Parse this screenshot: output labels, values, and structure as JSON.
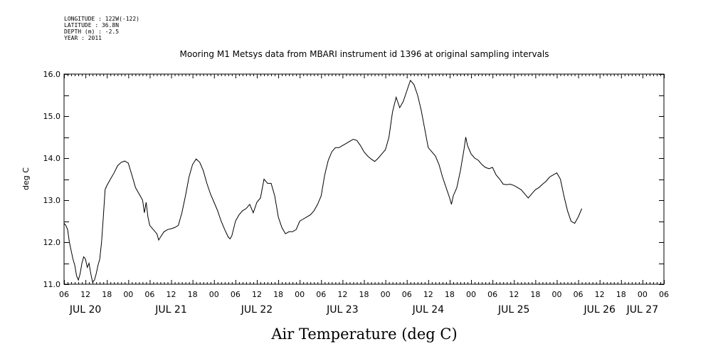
{
  "metadata": [
    "LONGITUDE : 122W(-122)",
    "LATITUDE : 36.8N",
    "DEPTH (m) : -2.5",
    "YEAR : 2011"
  ],
  "chart_data": {
    "type": "line",
    "title": "Mooring M1 Metsys data from MBARI instrument id 1396 at original sampling intervals",
    "xlabel": "Air Temperature (deg C)",
    "ylabel": "deg C",
    "ylim": [
      11.0,
      16.0
    ],
    "yticks": [
      "11.0",
      "12.0",
      "13.0",
      "14.0",
      "15.0",
      "16.0"
    ],
    "xlim_hours": [
      6,
      174
    ],
    "xtick_labels": [
      "06",
      "12",
      "18",
      "00",
      "06",
      "12",
      "18",
      "00",
      "06",
      "12",
      "18",
      "00",
      "06",
      "12",
      "18",
      "00",
      "06",
      "12",
      "18",
      "00",
      "06",
      "12",
      "18",
      "00",
      "06",
      "12",
      "18",
      "00",
      "06"
    ],
    "day_labels": [
      {
        "label": "JUL 20",
        "hour": 12
      },
      {
        "label": "JUL 21",
        "hour": 36
      },
      {
        "label": "JUL 22",
        "hour": 60
      },
      {
        "label": "JUL 23",
        "hour": 84
      },
      {
        "label": "JUL 24",
        "hour": 108
      },
      {
        "label": "JUL 25",
        "hour": 132
      },
      {
        "label": "JUL 26",
        "hour": 156
      },
      {
        "label": "JUL 27",
        "hour": 168
      }
    ],
    "grid": false,
    "series": [
      {
        "points": [
          [
            6.0,
            12.45
          ],
          [
            6.5,
            12.4
          ],
          [
            7.0,
            12.3
          ],
          [
            7.5,
            12.0
          ],
          [
            8.0,
            11.8
          ],
          [
            8.5,
            11.6
          ],
          [
            9.0,
            11.45
          ],
          [
            9.5,
            11.2
          ],
          [
            10.0,
            11.1
          ],
          [
            10.5,
            11.25
          ],
          [
            11.0,
            11.5
          ],
          [
            11.5,
            11.65
          ],
          [
            12.0,
            11.6
          ],
          [
            12.5,
            11.4
          ],
          [
            13.0,
            11.5
          ],
          [
            13.5,
            11.25
          ],
          [
            14.0,
            11.05
          ],
          [
            14.5,
            11.1
          ],
          [
            15.0,
            11.25
          ],
          [
            15.5,
            11.45
          ],
          [
            16.0,
            11.6
          ],
          [
            16.5,
            12.0
          ],
          [
            17.0,
            12.6
          ],
          [
            17.5,
            13.25
          ],
          [
            18.0,
            13.35
          ],
          [
            19.0,
            13.5
          ],
          [
            20.0,
            13.65
          ],
          [
            21.0,
            13.82
          ],
          [
            22.0,
            13.9
          ],
          [
            23.0,
            13.93
          ],
          [
            24.0,
            13.88
          ],
          [
            25.0,
            13.6
          ],
          [
            26.0,
            13.3
          ],
          [
            27.0,
            13.15
          ],
          [
            28.0,
            13.0
          ],
          [
            28.5,
            12.7
          ],
          [
            29.0,
            12.95
          ],
          [
            29.5,
            12.6
          ],
          [
            30.0,
            12.4
          ],
          [
            31.0,
            12.3
          ],
          [
            32.0,
            12.2
          ],
          [
            32.5,
            12.05
          ],
          [
            33.0,
            12.12
          ],
          [
            34.0,
            12.25
          ],
          [
            35.0,
            12.3
          ],
          [
            36.0,
            12.32
          ],
          [
            37.0,
            12.35
          ],
          [
            38.0,
            12.4
          ],
          [
            39.0,
            12.7
          ],
          [
            40.0,
            13.1
          ],
          [
            41.0,
            13.55
          ],
          [
            42.0,
            13.85
          ],
          [
            43.0,
            13.98
          ],
          [
            44.0,
            13.9
          ],
          [
            45.0,
            13.7
          ],
          [
            46.0,
            13.4
          ],
          [
            47.0,
            13.15
          ],
          [
            48.0,
            12.95
          ],
          [
            49.0,
            12.75
          ],
          [
            50.0,
            12.5
          ],
          [
            51.0,
            12.3
          ],
          [
            52.0,
            12.12
          ],
          [
            52.5,
            12.08
          ],
          [
            53.0,
            12.15
          ],
          [
            54.0,
            12.5
          ],
          [
            55.0,
            12.65
          ],
          [
            56.0,
            12.75
          ],
          [
            57.0,
            12.8
          ],
          [
            58.0,
            12.9
          ],
          [
            59.0,
            12.7
          ],
          [
            60.0,
            12.95
          ],
          [
            61.0,
            13.05
          ],
          [
            62.0,
            13.5
          ],
          [
            63.0,
            13.4
          ],
          [
            64.0,
            13.4
          ],
          [
            65.0,
            13.1
          ],
          [
            66.0,
            12.6
          ],
          [
            67.0,
            12.35
          ],
          [
            68.0,
            12.2
          ],
          [
            69.0,
            12.25
          ],
          [
            70.0,
            12.25
          ],
          [
            71.0,
            12.3
          ],
          [
            72.0,
            12.5
          ],
          [
            73.0,
            12.55
          ],
          [
            74.0,
            12.6
          ],
          [
            75.0,
            12.65
          ],
          [
            76.0,
            12.75
          ],
          [
            77.0,
            12.9
          ],
          [
            78.0,
            13.1
          ],
          [
            79.0,
            13.6
          ],
          [
            80.0,
            13.95
          ],
          [
            81.0,
            14.15
          ],
          [
            82.0,
            14.25
          ],
          [
            83.0,
            14.25
          ],
          [
            84.0,
            14.3
          ],
          [
            85.0,
            14.35
          ],
          [
            86.0,
            14.4
          ],
          [
            87.0,
            14.45
          ],
          [
            88.0,
            14.42
          ],
          [
            89.0,
            14.3
          ],
          [
            90.0,
            14.15
          ],
          [
            91.0,
            14.05
          ],
          [
            92.0,
            13.98
          ],
          [
            93.0,
            13.92
          ],
          [
            94.0,
            14.0
          ],
          [
            95.0,
            14.1
          ],
          [
            96.0,
            14.2
          ],
          [
            97.0,
            14.5
          ],
          [
            98.0,
            15.1
          ],
          [
            99.0,
            15.45
          ],
          [
            100.0,
            15.2
          ],
          [
            101.0,
            15.35
          ],
          [
            102.0,
            15.6
          ],
          [
            103.0,
            15.85
          ],
          [
            104.0,
            15.75
          ],
          [
            105.0,
            15.5
          ],
          [
            106.0,
            15.15
          ],
          [
            107.0,
            14.7
          ],
          [
            108.0,
            14.25
          ],
          [
            109.0,
            14.15
          ],
          [
            110.0,
            14.05
          ],
          [
            111.0,
            13.85
          ],
          [
            112.0,
            13.55
          ],
          [
            113.0,
            13.3
          ],
          [
            114.0,
            13.05
          ],
          [
            114.5,
            12.9
          ],
          [
            115.0,
            13.1
          ],
          [
            116.0,
            13.3
          ],
          [
            117.0,
            13.7
          ],
          [
            118.0,
            14.2
          ],
          [
            118.5,
            14.5
          ],
          [
            119.0,
            14.3
          ],
          [
            120.0,
            14.1
          ],
          [
            121.0,
            14.0
          ],
          [
            122.0,
            13.95
          ],
          [
            123.0,
            13.85
          ],
          [
            124.0,
            13.78
          ],
          [
            125.0,
            13.75
          ],
          [
            126.0,
            13.78
          ],
          [
            127.0,
            13.6
          ],
          [
            128.0,
            13.5
          ],
          [
            129.0,
            13.38
          ],
          [
            130.0,
            13.37
          ],
          [
            131.0,
            13.38
          ],
          [
            132.0,
            13.35
          ],
          [
            133.0,
            13.3
          ],
          [
            134.0,
            13.25
          ],
          [
            135.0,
            13.15
          ],
          [
            136.0,
            13.05
          ],
          [
            137.0,
            13.15
          ],
          [
            138.0,
            13.25
          ],
          [
            139.0,
            13.3
          ],
          [
            140.0,
            13.38
          ],
          [
            141.0,
            13.45
          ],
          [
            142.0,
            13.55
          ],
          [
            143.0,
            13.6
          ],
          [
            144.0,
            13.65
          ],
          [
            145.0,
            13.5
          ],
          [
            146.0,
            13.1
          ],
          [
            147.0,
            12.75
          ],
          [
            148.0,
            12.5
          ],
          [
            149.0,
            12.45
          ],
          [
            150.0,
            12.6
          ],
          [
            151.0,
            12.8
          ]
        ]
      }
    ]
  }
}
